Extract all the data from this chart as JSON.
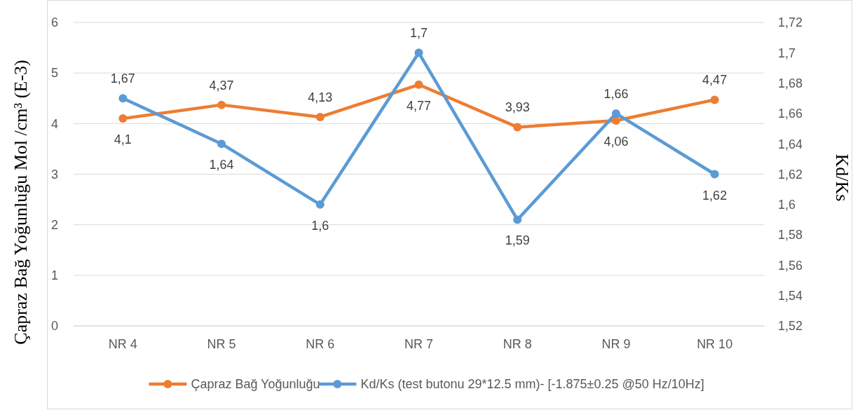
{
  "chart_data": {
    "type": "line",
    "ylabel": "Çapraz Bağ Yoğunluğu Mol /cm³ (E-3)",
    "y2label": "Kd/Ks",
    "categories": [
      "NR 4",
      "NR 5",
      "NR 6",
      "NR 7",
      "NR 8",
      "NR 9",
      "NR 10"
    ],
    "series": [
      {
        "name": "Çapraz Bağ Yoğunluğu",
        "color": "#ed7d31",
        "values": [
          4.1,
          4.37,
          4.13,
          4.77,
          3.93,
          4.06,
          4.47
        ],
        "value_labels": [
          "4,1",
          "4,37",
          "4,13",
          "4,77",
          "3,93",
          "4,06",
          "4,47"
        ]
      },
      {
        "name": "Kd/Ks (test butonu 29*12.5 mm)- [-1.875±0.25 @50 Hz/10Hz]",
        "color": "#5b9bd5",
        "axis": "y2",
        "values": [
          1.67,
          1.64,
          1.6,
          1.7,
          1.59,
          1.66,
          1.62
        ],
        "value_labels": [
          "1,67",
          "1,64",
          "1,6",
          "1,7",
          "1,59",
          "1,66",
          "1,62"
        ]
      }
    ],
    "ylim": [
      0,
      6
    ],
    "yticks": [
      0,
      1,
      2,
      3,
      4,
      5,
      6
    ],
    "y2lim": [
      1.52,
      1.72
    ],
    "y2ticks": [
      {
        "value": 1.52,
        "label": "1,52"
      },
      {
        "value": 1.54,
        "label": "1,54"
      },
      {
        "value": 1.56,
        "label": "1,56"
      },
      {
        "value": 1.58,
        "label": "1,58"
      },
      {
        "value": 1.6,
        "label": "1,6"
      },
      {
        "value": 1.62,
        "label": "1,62"
      },
      {
        "value": 1.64,
        "label": "1,64"
      },
      {
        "value": 1.66,
        "label": "1,66"
      },
      {
        "value": 1.68,
        "label": "1,68"
      },
      {
        "value": 1.7,
        "label": "1,7"
      },
      {
        "value": 1.72,
        "label": "1,72"
      }
    ],
    "grid": "y",
    "legend": "bottom",
    "marker": "circle",
    "line_style": "solid"
  }
}
